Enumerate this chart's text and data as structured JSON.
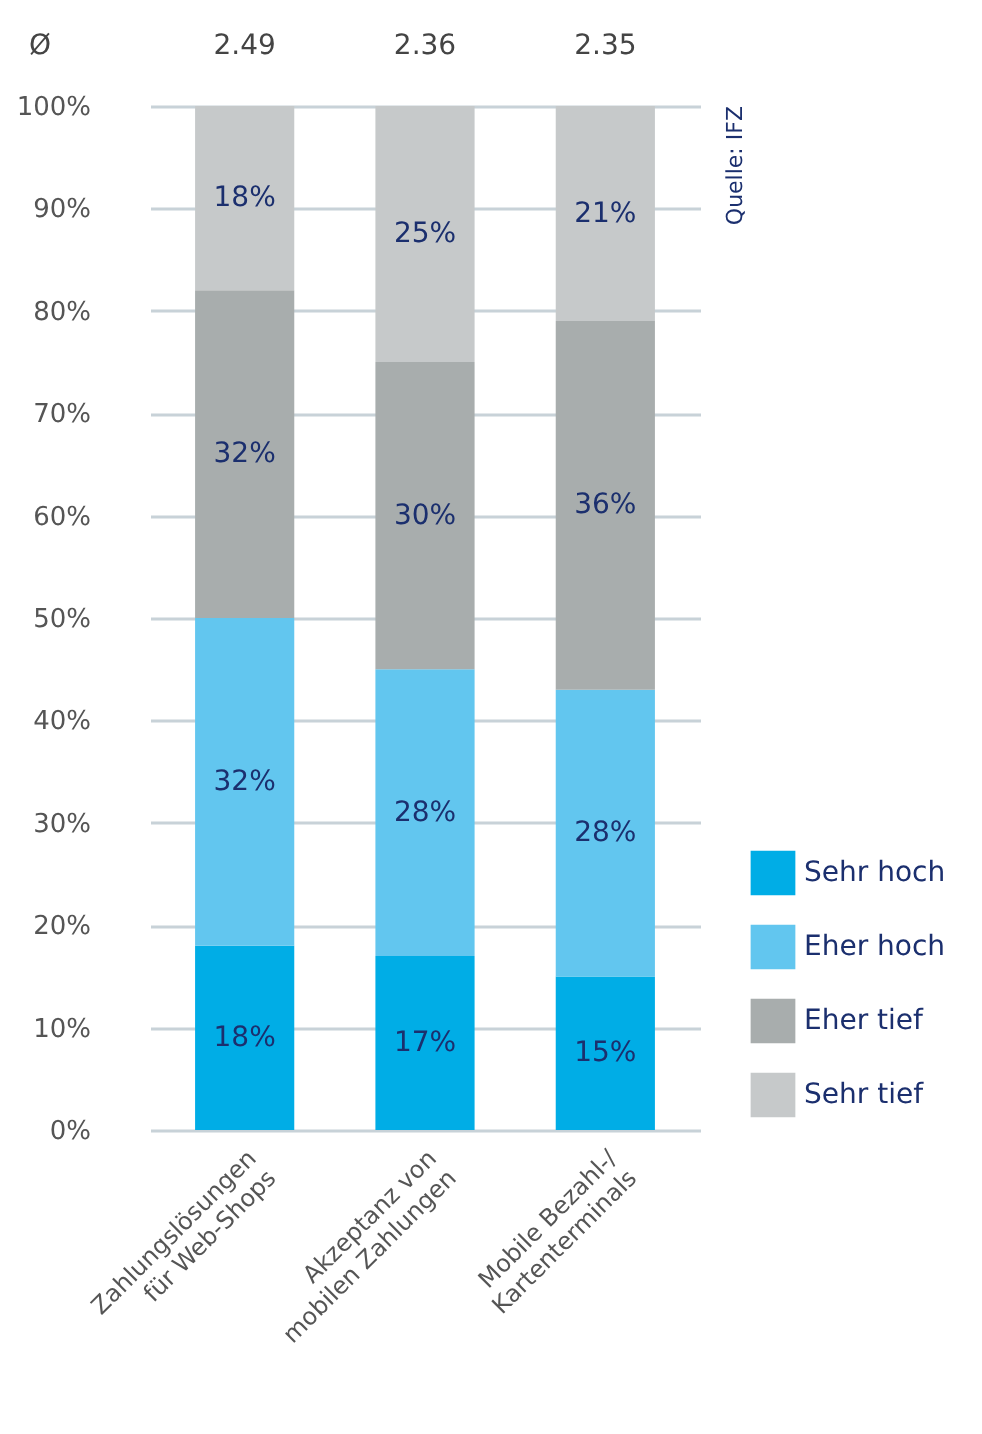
{
  "chart_data": {
    "type": "bar",
    "stacked": true,
    "categories": [
      "Zahlungslösungen\nfür Web-Shops",
      "Akzeptanz von\nmobilen Zahlungen",
      "Mobile Bezahl-/\nKartenterminals"
    ],
    "series": [
      {
        "name": "Sehr hoch",
        "color": "#00ade6",
        "values": [
          18,
          17,
          15
        ],
        "value_labels": [
          "18%",
          "17%",
          "15%"
        ]
      },
      {
        "name": "Eher hoch",
        "color": "#62c6ef",
        "values": [
          32,
          28,
          28
        ],
        "value_labels": [
          "32%",
          "28%",
          "28%"
        ]
      },
      {
        "name": "Eher tief",
        "color": "#a8adad",
        "values": [
          32,
          30,
          36
        ],
        "value_labels": [
          "32%",
          "30%",
          "36%"
        ]
      },
      {
        "name": "Sehr tief",
        "color": "#c6c9ca",
        "values": [
          18,
          25,
          21
        ],
        "value_labels": [
          "18%",
          "25%",
          "21%"
        ]
      }
    ],
    "ylim": [
      0,
      100
    ],
    "yticks": [
      {
        "value": 0,
        "label": "0%"
      },
      {
        "value": 10,
        "label": "10%"
      },
      {
        "value": 20,
        "label": "20%"
      },
      {
        "value": 30,
        "label": "30%"
      },
      {
        "value": 40,
        "label": "40%"
      },
      {
        "value": 50,
        "label": "50%"
      },
      {
        "value": 60,
        "label": "60%"
      },
      {
        "value": 70,
        "label": "70%"
      },
      {
        "value": 80,
        "label": "80%"
      },
      {
        "value": 90,
        "label": "90%"
      },
      {
        "value": 100,
        "label": "100%"
      }
    ],
    "grid": "y",
    "legend": "right",
    "annotations": [
      "Ø",
      "2.49",
      "2.36",
      "2.35",
      "Quelle: IFZ"
    ]
  }
}
